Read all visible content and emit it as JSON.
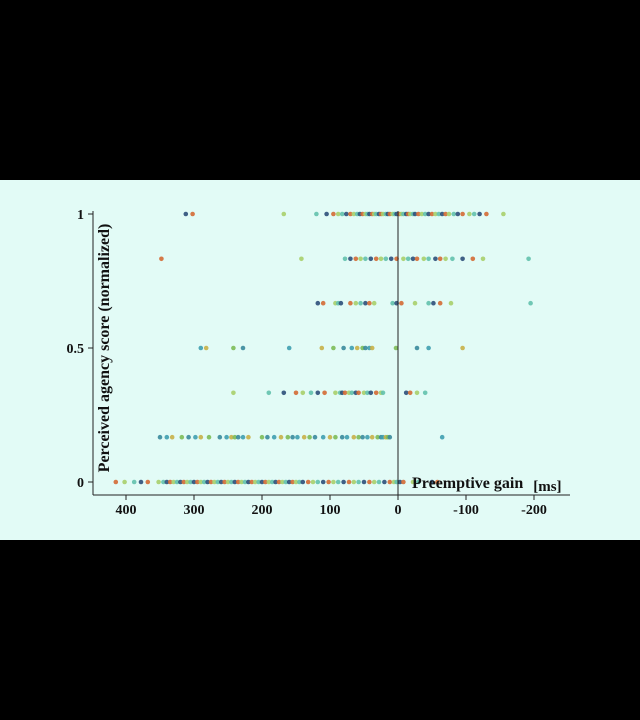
{
  "chart_data": {
    "type": "scatter",
    "xlabel": "Preemptive gain",
    "xunit": "[ms]",
    "ylabel": "Perceived agency score (normalized)",
    "xlim": [
      450,
      -250
    ],
    "ylim": [
      0,
      1
    ],
    "x_ticks": [
      400,
      300,
      200,
      100,
      0,
      -100,
      -200
    ],
    "x_tick_labels": [
      "400",
      "300",
      "200",
      "100",
      "0",
      "-100",
      "-200"
    ],
    "y_ticks": [
      0,
      0.5,
      1
    ],
    "y_tick_labels": [
      "0",
      "0.5",
      "1"
    ],
    "vertical_line_at_x": 0,
    "grid": false,
    "colors": [
      "#2d4f7a",
      "#3a8a9c",
      "#63c1ad",
      "#7dbb58",
      "#a8cf6c",
      "#c8b048",
      "#d46a35",
      "#3f9fb0"
    ],
    "series": [
      {
        "y": 1,
        "x": [
          312,
          302,
          168,
          120,
          105,
          95,
          88,
          82,
          76,
          70,
          65,
          60,
          56,
          52,
          48,
          45,
          42,
          38,
          35,
          32,
          28,
          25,
          22,
          18,
          15,
          12,
          8,
          5,
          2,
          -2,
          -5,
          -8,
          -12,
          -15,
          -18,
          -22,
          -25,
          -30,
          -35,
          -40,
          -45,
          -50,
          -55,
          -60,
          -65,
          -70,
          -75,
          -82,
          -88,
          -95,
          -105,
          -112,
          -120,
          -130,
          -155
        ]
      },
      {
        "y": 0.833,
        "x": [
          348,
          142,
          78,
          70,
          62,
          55,
          48,
          40,
          32,
          25,
          18,
          10,
          2,
          -8,
          -15,
          -22,
          -28,
          -38,
          -45,
          -55,
          -62,
          -70,
          -80,
          -95,
          -110,
          -125,
          -192
        ]
      },
      {
        "y": 0.667,
        "x": [
          118,
          110,
          92,
          88,
          84,
          70,
          62,
          55,
          48,
          42,
          35,
          8,
          2,
          -5,
          -25,
          -45,
          -52,
          -62,
          -78,
          -195
        ]
      },
      {
        "y": 0.5,
        "x": [
          290,
          282,
          242,
          228,
          160,
          112,
          95,
          80,
          68,
          60,
          52,
          48,
          42,
          38,
          3,
          -28,
          -45,
          -95
        ]
      },
      {
        "y": 0.333,
        "x": [
          242,
          190,
          168,
          150,
          140,
          128,
          118,
          108,
          92,
          85,
          82,
          78,
          72,
          68,
          62,
          58,
          50,
          45,
          40,
          32,
          25,
          22,
          -12,
          -18,
          -28,
          -40
        ]
      },
      {
        "y": 0.167,
        "x": [
          350,
          340,
          332,
          318,
          308,
          298,
          290,
          278,
          262,
          252,
          245,
          240,
          235,
          228,
          220,
          200,
          192,
          182,
          172,
          162,
          155,
          148,
          138,
          130,
          122,
          110,
          100,
          92,
          82,
          75,
          65,
          58,
          52,
          45,
          38,
          30,
          25,
          22,
          18,
          15,
          12,
          -65
        ]
      },
      {
        "y": 0,
        "x": [
          415,
          402,
          388,
          378,
          368,
          352,
          345,
          340,
          335,
          330,
          325,
          320,
          315,
          310,
          305,
          300,
          295,
          290,
          285,
          280,
          275,
          270,
          265,
          260,
          255,
          250,
          245,
          240,
          235,
          230,
          225,
          220,
          215,
          210,
          205,
          200,
          195,
          190,
          185,
          180,
          175,
          170,
          165,
          160,
          155,
          150,
          145,
          140,
          132,
          125,
          118,
          110,
          102,
          95,
          88,
          80,
          72,
          65,
          58,
          50,
          42,
          35,
          28,
          20,
          12,
          6,
          2,
          -3,
          -8,
          -22,
          -30,
          -50,
          -58
        ]
      }
    ]
  }
}
